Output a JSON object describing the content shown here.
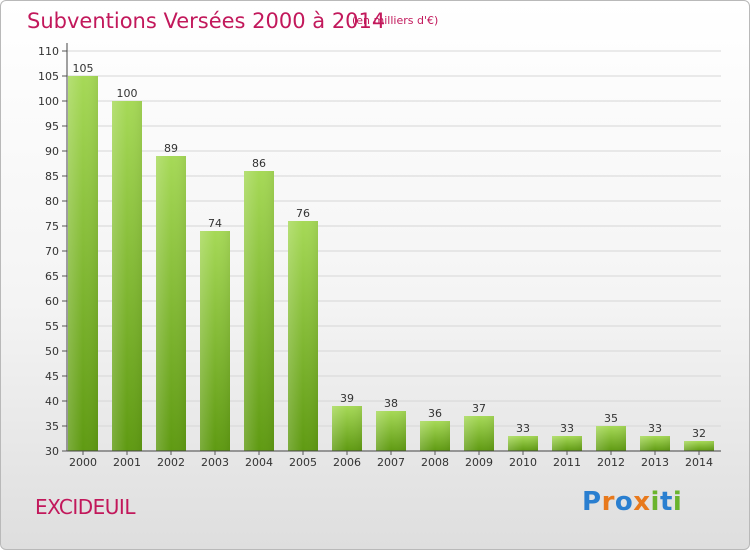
{
  "header": {
    "title": "Subventions Versées 2000 à 2014",
    "unit_note": "(en milliers d'€)"
  },
  "footer": {
    "commune": "EXCIDEUIL",
    "logo_text": "Proxiti"
  },
  "colors": {
    "title": "#c2185b",
    "bar_light": "#a6d957",
    "bar_dark": "#5f9a12",
    "logo": [
      "#2a7fd0",
      "#e8791c",
      "#2a7fd0",
      "#e8791c",
      "#6ab42d",
      "#2a7fd0",
      "#6ab42d"
    ]
  },
  "chart_data": {
    "type": "bar",
    "title": "Subventions Versées 2000 à 2014",
    "unit": "(en milliers d'€)",
    "categories": [
      "2000",
      "2001",
      "2002",
      "2003",
      "2004",
      "2005",
      "2006",
      "2007",
      "2008",
      "2009",
      "2010",
      "2011",
      "2012",
      "2013",
      "2014"
    ],
    "values": [
      105,
      100,
      89,
      74,
      86,
      76,
      39,
      38,
      36,
      37,
      33,
      33,
      35,
      33,
      32
    ],
    "ylim": [
      30,
      110
    ],
    "yticks": [
      30,
      35,
      40,
      45,
      50,
      55,
      60,
      65,
      70,
      75,
      80,
      85,
      90,
      95,
      100,
      105,
      110
    ],
    "grid": true,
    "legend": "none"
  }
}
